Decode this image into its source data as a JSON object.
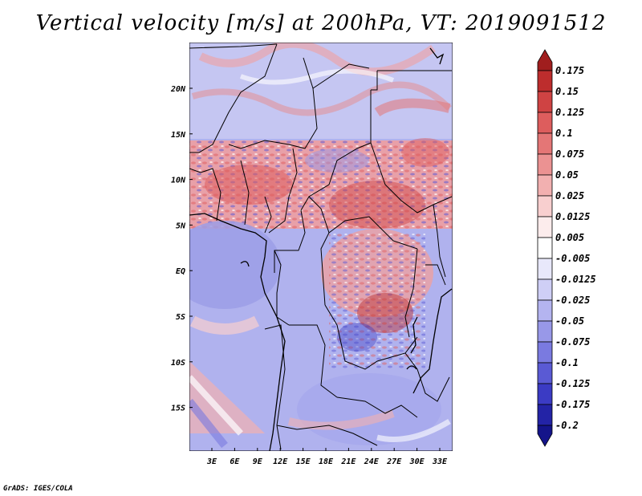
{
  "map": {
    "title": "Vertical velocity [m/s] at 200hPa, VT: 2019091512",
    "credit": "GrADS: IGES/COLA",
    "variable": "Vertical velocity",
    "units": "m/s",
    "level": "200hPa",
    "valid_time": "2019091512",
    "lon_labels": [
      "3E",
      "6E",
      "9E",
      "12E",
      "15E",
      "18E",
      "21E",
      "24E",
      "27E",
      "30E",
      "33E"
    ],
    "lat_labels": [
      "20N",
      "15N",
      "10N",
      "5N",
      "EQ",
      "5S",
      "10S",
      "15S"
    ],
    "colorbar": {
      "labels": [
        "0.175",
        "0.15",
        "0.125",
        "0.1",
        "0.075",
        "0.05",
        "0.025",
        "0.0125",
        "0.005",
        "-0.005",
        "-0.0125",
        "-0.025",
        "-0.05",
        "-0.075",
        "-0.1",
        "-0.125",
        "-0.175",
        "-0.2"
      ],
      "colors": [
        "#a01e1e",
        "#bd2d2d",
        "#cf4343",
        "#dd5d5d",
        "#e47676",
        "#eb9292",
        "#f2b0b0",
        "#f8cfcf",
        "#fcecec",
        "#ffffff",
        "#e8e8fb",
        "#cfcff6",
        "#b4b4f0",
        "#9898e8",
        "#7a7ae0",
        "#5a5ad4",
        "#3b3bc4",
        "#2323a6",
        "#14148a"
      ]
    }
  }
}
